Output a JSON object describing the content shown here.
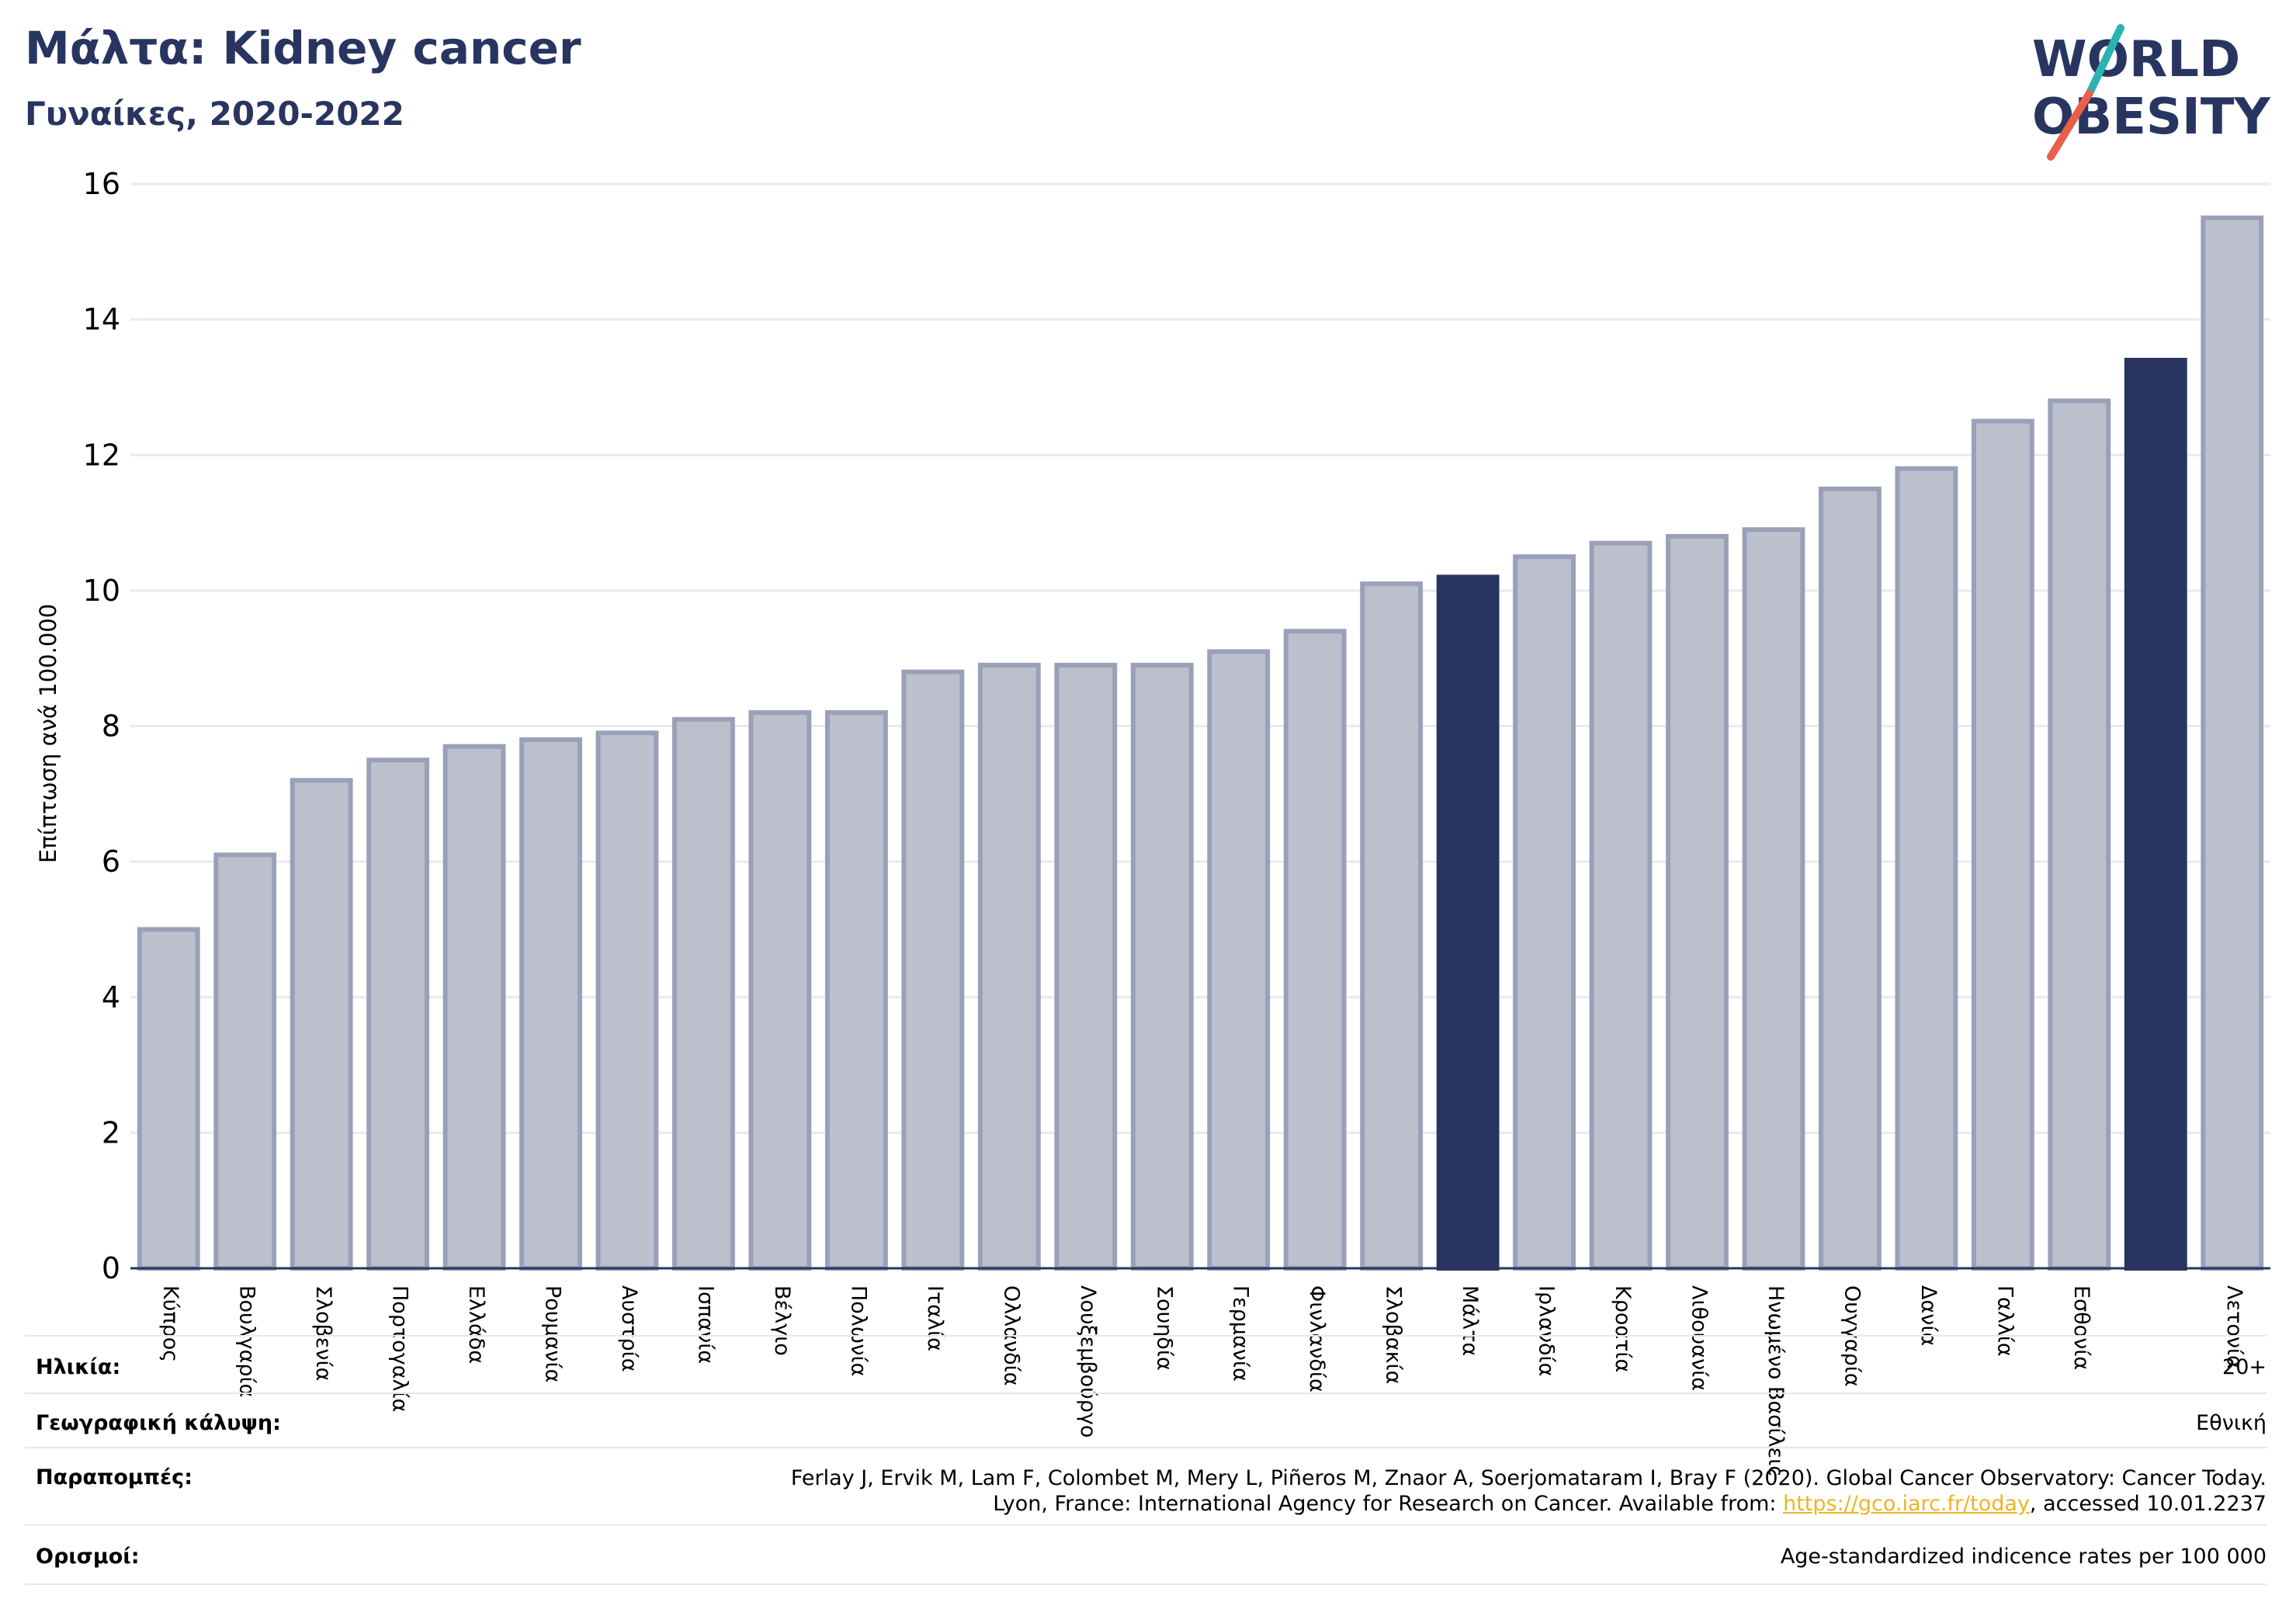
{
  "header": {
    "title": "Μάλτα: Kidney cancer",
    "subtitle": "Γυναίκες, 2020-2022"
  },
  "logo": {
    "line1": "WORLD",
    "line2": "OBESITY",
    "accent_teal": "#2bb3b1",
    "accent_red": "#e8604c",
    "text_color": "#283560"
  },
  "colors": {
    "bar_default": "#bcc0cd",
    "bar_default_stroke": "#9aa0b8",
    "bar_highlight": "#283560",
    "title": "#283560",
    "link": "#f0b323"
  },
  "chart_data": {
    "type": "bar",
    "ylabel": "Επίπτωση ανά 100.000",
    "xlabel": "",
    "ylim": [
      0,
      16
    ],
    "yticks": [
      0,
      2,
      4,
      6,
      8,
      10,
      12,
      14,
      16
    ],
    "grid": true,
    "categories": [
      "Κύπρος",
      "Βουλγαρία",
      "Σλοβενία",
      "Πορτογαλία",
      "Ελλάδα",
      "Ρουμανία",
      "Αυστρία",
      "Ισπανία",
      "Βέλγιο",
      "Πολωνία",
      "Ιταλία",
      "Ολλανδία",
      "Λουξεμβούργο",
      "Σουηδία",
      "Γερμανία",
      "Φινλανδία",
      "Σλοβακία",
      "Μάλτα",
      "Ιρλανδία",
      "Κροατία",
      "Λιθουανία",
      "Ηνωμένο Βασίλειο",
      "Ουγγαρία",
      "Δανία",
      "Γαλλία",
      "Εσθονία",
      "",
      "Λετονία"
    ],
    "values": [
      5.0,
      6.1,
      7.2,
      7.5,
      7.7,
      7.8,
      7.9,
      8.1,
      8.2,
      8.2,
      8.8,
      8.9,
      8.9,
      8.9,
      9.1,
      9.4,
      10.1,
      10.2,
      10.5,
      10.7,
      10.8,
      10.9,
      11.5,
      11.8,
      12.5,
      12.8,
      13.4,
      15.5
    ],
    "highlighted": [
      "Μάλτα",
      ""
    ]
  },
  "meta": {
    "age_label": "Ηλικία:",
    "age_value": "20+",
    "coverage_label": "Γεωγραφική κάλυψη:",
    "coverage_value": "Εθνική",
    "references_label": "Παραπομπές:",
    "references_line1": "Ferlay J, Ervik M, Lam F, Colombet M, Mery L, Piñeros M, Znaor A, Soerjomataram I, Bray F (2020). Global Cancer Observatory: Cancer Today.",
    "references_line2_pre": "Lyon, France: International Agency for Research on Cancer. Available from: ",
    "references_link": "https://gco.iarc.fr/today",
    "references_line2_post": ", accessed 10.01.2237",
    "definitions_label": "Ορισμοί:",
    "definitions_value": "Age-standardized indicence rates per 100 000"
  }
}
